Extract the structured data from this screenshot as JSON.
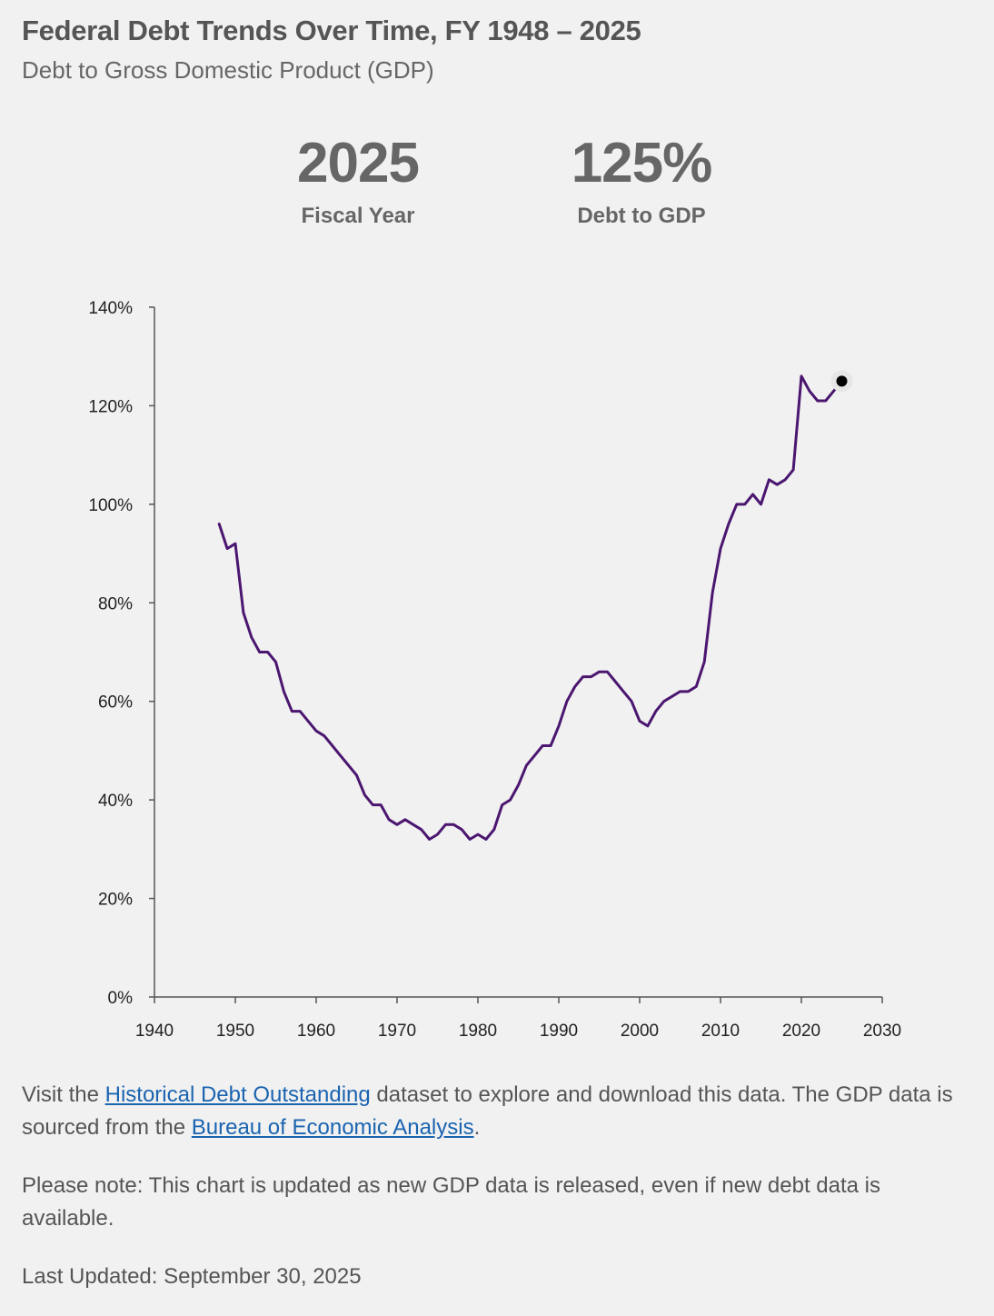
{
  "header": {
    "title": "Federal Debt Trends Over Time, FY 1948 – 2025",
    "subtitle": "Debt to Gross Domestic Product (GDP)"
  },
  "stats": {
    "year": "2025",
    "year_label": "Fiscal Year",
    "value": "125%",
    "value_label": "Debt to GDP"
  },
  "chart_data": {
    "type": "line",
    "title": "",
    "xlabel": "",
    "ylabel": "",
    "xlim": [
      1940,
      2030
    ],
    "ylim": [
      0,
      140
    ],
    "x_ticks": [
      1940,
      1950,
      1960,
      1970,
      1980,
      1990,
      2000,
      2010,
      2020,
      2030
    ],
    "y_ticks": [
      0,
      20,
      40,
      60,
      80,
      100,
      120,
      140
    ],
    "y_tick_labels": [
      "0%",
      "20%",
      "40%",
      "60%",
      "80%",
      "100%",
      "120%",
      "140%"
    ],
    "line_color": "#4b1670",
    "highlight_color": "#000000",
    "highlight": {
      "x": 2025,
      "y": 125
    },
    "grid": false,
    "series": [
      {
        "x": [
          1948,
          1949,
          1950,
          1951,
          1952,
          1953,
          1954,
          1955,
          1956,
          1957,
          1958,
          1959,
          1960,
          1961,
          1962,
          1963,
          1964,
          1965,
          1966,
          1967,
          1968,
          1969,
          1970,
          1971,
          1972,
          1973,
          1974,
          1975,
          1976,
          1977,
          1978,
          1979,
          1980,
          1981,
          1982,
          1983,
          1984,
          1985,
          1986,
          1987,
          1988,
          1989,
          1990,
          1991,
          1992,
          1993,
          1994,
          1995,
          1996,
          1997,
          1998,
          1999,
          2000,
          2001,
          2002,
          2003,
          2004,
          2005,
          2006,
          2007,
          2008,
          2009,
          2010,
          2011,
          2012,
          2013,
          2014,
          2015,
          2016,
          2017,
          2018,
          2019,
          2020,
          2021,
          2022,
          2023,
          2024,
          2025
        ],
        "y": [
          96,
          91,
          92,
          78,
          73,
          70,
          70,
          68,
          62,
          58,
          58,
          56,
          54,
          53,
          51,
          49,
          47,
          45,
          41,
          39,
          39,
          36,
          35,
          36,
          35,
          34,
          32,
          33,
          35,
          35,
          34,
          32,
          33,
          32,
          34,
          39,
          40,
          43,
          47,
          49,
          51,
          51,
          55,
          60,
          63,
          65,
          65,
          66,
          66,
          64,
          62,
          60,
          56,
          55,
          58,
          60,
          61,
          62,
          62,
          63,
          68,
          82,
          91,
          96,
          100,
          100,
          102,
          100,
          105,
          104,
          105,
          107,
          126,
          123,
          121,
          121,
          123,
          125
        ]
      }
    ]
  },
  "footer": {
    "p1_before": "Visit the ",
    "p1_link1": "Historical Debt Outstanding",
    "p1_middle": " dataset to explore and download this data. The GDP data is sourced from the ",
    "p1_link2": "Bureau of Economic Analysis",
    "p1_after": ".",
    "note": "Please note: This chart is updated as new GDP data is released, even if new debt data is available.",
    "updated": "Last Updated: September 30, 2025"
  }
}
